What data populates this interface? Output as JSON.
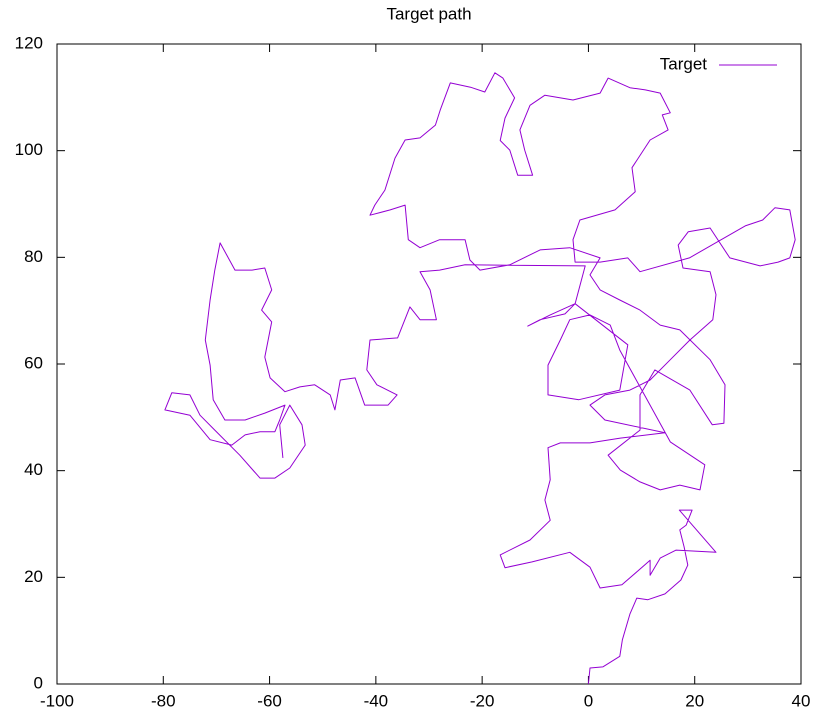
{
  "chart_data": {
    "type": "line",
    "title": "Target path",
    "series": [
      {
        "name": "Target",
        "color": "#9400d3",
        "x": [
          0,
          0.3,
          2.7,
          5.9,
          6.4,
          7.8,
          9.1,
          11.2,
          14.4,
          17.4,
          18.7,
          18,
          17.2,
          18.4,
          19.5,
          17.1,
          24,
          16.5,
          13.5,
          11.6,
          11.6,
          6.3,
          2.2,
          0.3,
          -3.5,
          -10.6,
          -15.7,
          -16.6,
          -11,
          -7.2,
          -8.2,
          -7.2,
          -7.6,
          -5.3,
          0.3,
          6,
          14.4,
          3.1,
          0.3,
          3.1,
          7.8,
          11.6,
          15.4,
          19.1,
          23.4,
          24,
          22.9,
          17.8,
          16.9,
          18.8,
          22.9,
          26.6,
          32.3,
          35.7,
          37.9,
          38.9,
          37.9,
          35.1,
          32.8,
          29.5,
          19,
          9.7,
          7.4,
          2.2,
          -2.5,
          -2.9,
          -1.6,
          5,
          8.8,
          8.2,
          11.6,
          15,
          13.9,
          15.4,
          13.5,
          10.7,
          7.8,
          3.7,
          2.2,
          -2.9,
          -8.2,
          -11,
          -12.9,
          -12,
          -10.5,
          -13.3,
          -14.8,
          -16.6,
          -15.7,
          -13.9,
          -16.1,
          -17.6,
          -19.5,
          -22.2,
          -26,
          -27.9,
          -28.8,
          -31.7,
          -34.5,
          -36.4,
          -38.3,
          -40.2,
          -41.1,
          -37.3,
          -34.5,
          -33.9,
          -31.7,
          -28,
          -23.2,
          -22.3,
          -20.4,
          -14.8,
          -9.1,
          -3.5,
          2.2,
          0.3,
          2.2,
          5.9,
          9.7,
          13.5,
          17.2,
          22.9,
          25.7,
          25.5,
          23.3,
          19.1,
          12.5,
          9.7,
          9.7,
          3.7,
          6,
          9.7,
          13.5,
          17.2,
          21,
          21.9,
          15.4,
          5.9,
          4.1,
          0.3,
          -3.5,
          -5.3,
          -7.6,
          -7.6,
          -1.8,
          5.9,
          7.4,
          -2.5,
          -4.4,
          -9.1,
          -11.4,
          -7.2,
          -2.5,
          -0.6,
          -23.2,
          -28,
          -31.7,
          -29.8,
          -28.6,
          -31.7,
          -33.6,
          -35.9,
          -41.1,
          -41.7,
          -39.8,
          -36,
          -37.7,
          -42.1,
          -43.9,
          -46.7,
          -47.7,
          -48.6,
          -51.5,
          -54.3,
          -57.1,
          -59.9,
          -60.9,
          -59.6,
          -61.5,
          -59.6,
          -60.9,
          -63.3,
          -66.5,
          -69.3,
          -70.3,
          -71.2,
          -72.1,
          -71.2,
          -70.6,
          -68.4,
          -64.6,
          -60.9,
          -57.1,
          -58.1,
          -59,
          -61.8,
          -64.6,
          -67.1,
          -71.2,
          -75,
          -79.7,
          -78.4,
          -75,
          -73.1,
          -70.3,
          -65.6,
          -61.8,
          -59,
          -56.2,
          -53.3,
          -53.9,
          -56.2,
          -58.1,
          -57.5
        ],
        "values": [
          0,
          3,
          3.2,
          5.2,
          8.3,
          13.1,
          16.1,
          15.8,
          16.9,
          19.5,
          22.3,
          25.7,
          28.9,
          29.8,
          32.6,
          32.6,
          24.7,
          25.1,
          23.6,
          20.4,
          23.2,
          18.6,
          18,
          21.9,
          24.7,
          22.9,
          21.8,
          24.2,
          27,
          30.7,
          34.5,
          38.3,
          44.3,
          45.2,
          45.2,
          46.1,
          47.1,
          49.5,
          52.3,
          54.2,
          55.1,
          57,
          60.8,
          64.5,
          68.3,
          73,
          77.3,
          78,
          82.3,
          84.8,
          85.5,
          79.9,
          78.4,
          79.1,
          79.9,
          83.3,
          88.9,
          89.3,
          87,
          85.9,
          79.9,
          77.3,
          79.9,
          79.1,
          79.1,
          83.3,
          87,
          88.9,
          92.3,
          96.8,
          102,
          103.9,
          106.7,
          107.1,
          110.8,
          111.4,
          111.8,
          113.6,
          110.8,
          109.5,
          110.4,
          108.5,
          103.9,
          100.1,
          95.4,
          95.4,
          100.1,
          101.9,
          106.1,
          109.9,
          113.6,
          114.6,
          111,
          111.9,
          112.7,
          107.6,
          104.8,
          102.4,
          102,
          98.6,
          92.6,
          89.8,
          87.9,
          88.9,
          89.8,
          83.3,
          81.8,
          83.3,
          83.3,
          79.5,
          77.6,
          78.6,
          81.4,
          81.8,
          79.9,
          76.7,
          73.9,
          72,
          70.1,
          67.3,
          66.4,
          60.8,
          56.1,
          48.9,
          48.6,
          55.1,
          58.9,
          54.2,
          47.6,
          42.9,
          40.1,
          37.9,
          36.4,
          37.3,
          36.4,
          41.1,
          45.4,
          62.6,
          67.3,
          69.2,
          68.3,
          64.5,
          59.8,
          54.2,
          53.3,
          55.1,
          63.6,
          71.3,
          69.4,
          68.3,
          67.1,
          69.2,
          71.3,
          78.4,
          78.6,
          77.6,
          77.3,
          73.9,
          68.3,
          68.3,
          70.7,
          64.9,
          64.5,
          58.9,
          56.1,
          54.2,
          52.3,
          52.3,
          57.4,
          57,
          51.4,
          54.2,
          56.1,
          55.7,
          54.8,
          57.4,
          61.3,
          67.9,
          70.1,
          73.9,
          78,
          77.6,
          77.6,
          82.7,
          77.6,
          72,
          64.5,
          59.8,
          53.3,
          49.5,
          49.5,
          50.8,
          52.3,
          49.5,
          47.3,
          47.3,
          46.7,
          44.8,
          45.8,
          50.4,
          51.4,
          54.6,
          54.2,
          50.4,
          47.6,
          42.9,
          38.6,
          38.6,
          40.5,
          44.8,
          48.6,
          52.3,
          48.6,
          42.4
        ]
      }
    ],
    "xlim": [
      -100,
      40
    ],
    "xticks": [
      -100,
      -80,
      -60,
      -40,
      -20,
      0,
      20,
      40
    ],
    "ylim": [
      0,
      120
    ],
    "yticks": [
      0,
      20,
      40,
      60,
      80,
      100,
      120
    ],
    "legend": "upper right"
  }
}
